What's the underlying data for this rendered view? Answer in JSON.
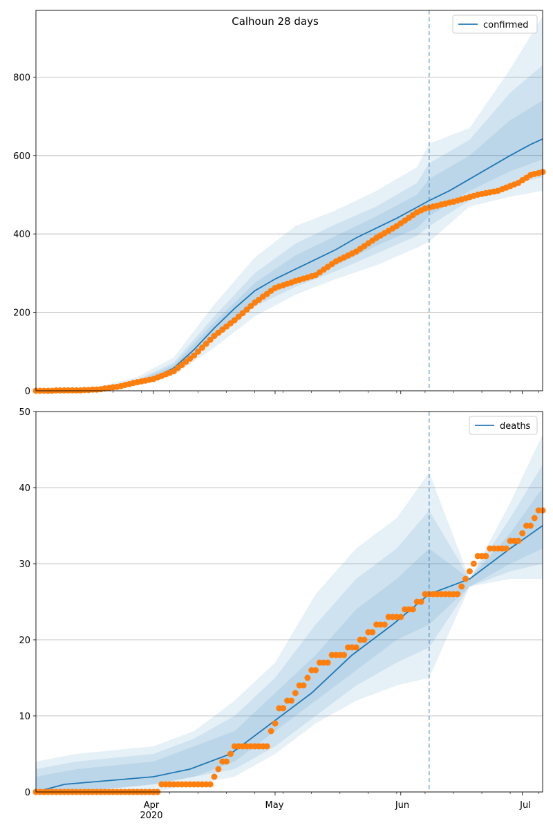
{
  "colors": {
    "model_line": "#1f77b4",
    "observed": "#ff7f0e",
    "band": "#1f77b4",
    "grid": "#b0b0b0",
    "forecast_line": "#1f77b4"
  },
  "x_tick_labels": {
    "apr": "Apr",
    "year": "2020",
    "may": "May",
    "jun": "Jun",
    "jul": "Jul"
  },
  "chart_data": [
    {
      "type": "line",
      "title": "Calhoun 28 days",
      "legend": [
        "confirmed"
      ],
      "legend_position": "top-right",
      "grid": "horizontal",
      "xlim": [
        "2020-03-03",
        "2020-07-06"
      ],
      "ylim": [
        0,
        970
      ],
      "y_ticks": [
        0,
        200,
        400,
        600,
        800
      ],
      "forecast_start": "2020-06-08",
      "observed": {
        "x": [
          "2020-03-03",
          "2020-03-13",
          "2020-03-18",
          "2020-03-23",
          "2020-03-28",
          "2020-04-01",
          "2020-04-06",
          "2020-04-11",
          "2020-04-16",
          "2020-04-21",
          "2020-04-26",
          "2020-05-01",
          "2020-05-06",
          "2020-05-11",
          "2020-05-16",
          "2020-05-21",
          "2020-05-26",
          "2020-05-31",
          "2020-06-05",
          "2020-06-07",
          "2020-06-10",
          "2020-06-15",
          "2020-06-20",
          "2020-06-25",
          "2020-06-30",
          "2020-07-03",
          "2020-07-06"
        ],
        "y": [
          0,
          1,
          3,
          10,
          22,
          30,
          50,
          90,
          140,
          180,
          225,
          262,
          280,
          295,
          330,
          355,
          390,
          420,
          455,
          465,
          472,
          485,
          500,
          510,
          530,
          550,
          558
        ]
      },
      "model": {
        "x": [
          "2020-03-03",
          "2020-03-13",
          "2020-03-18",
          "2020-03-23",
          "2020-03-28",
          "2020-04-01",
          "2020-04-06",
          "2020-04-11",
          "2020-04-16",
          "2020-04-21",
          "2020-04-26",
          "2020-05-01",
          "2020-05-06",
          "2020-05-11",
          "2020-05-16",
          "2020-05-21",
          "2020-05-26",
          "2020-05-31",
          "2020-06-05",
          "2020-06-08",
          "2020-06-13",
          "2020-06-18",
          "2020-06-23",
          "2020-06-28",
          "2020-07-03",
          "2020-07-06"
        ],
        "y": [
          0,
          2,
          5,
          12,
          22,
          33,
          58,
          105,
          160,
          210,
          255,
          285,
          310,
          335,
          360,
          390,
          415,
          440,
          468,
          485,
          510,
          540,
          570,
          600,
          628,
          642
        ]
      },
      "bands": {
        "x": [
          "2020-03-03",
          "2020-03-18",
          "2020-03-28",
          "2020-04-06",
          "2020-04-16",
          "2020-04-26",
          "2020-05-06",
          "2020-05-16",
          "2020-05-26",
          "2020-06-05",
          "2020-06-08",
          "2020-06-18",
          "2020-06-28",
          "2020-07-06"
        ],
        "outer_low": [
          0,
          3,
          15,
          40,
          110,
          190,
          245,
          285,
          320,
          365,
          380,
          470,
          495,
          510
        ],
        "outer_high": [
          0,
          9,
          35,
          85,
          220,
          340,
          420,
          460,
          510,
          570,
          630,
          670,
          820,
          955
        ],
        "inner_low": [
          0,
          4,
          18,
          48,
          130,
          215,
          265,
          305,
          350,
          395,
          420,
          485,
          525,
          545
        ],
        "inner_high": [
          0,
          7,
          28,
          72,
          190,
          300,
          375,
          425,
          470,
          530,
          580,
          640,
          760,
          830
        ],
        "core_low": [
          0,
          5,
          20,
          52,
          140,
          230,
          280,
          320,
          370,
          415,
          445,
          510,
          560,
          590
        ],
        "core_high": [
          0,
          6,
          25,
          66,
          175,
          275,
          345,
          395,
          445,
          500,
          540,
          600,
          690,
          740
        ]
      }
    },
    {
      "type": "line",
      "legend": [
        "deaths"
      ],
      "legend_position": "top-right",
      "grid": "horizontal",
      "xlim": [
        "2020-03-03",
        "2020-07-06"
      ],
      "ylim": [
        0,
        50
      ],
      "y_ticks": [
        0,
        10,
        20,
        30,
        40,
        50
      ],
      "forecast_start": "2020-06-08",
      "observed": {
        "x": [
          "2020-03-03",
          "2020-04-01",
          "2020-04-05",
          "2020-04-15",
          "2020-04-17",
          "2020-04-19",
          "2020-04-21",
          "2020-04-29",
          "2020-05-02",
          "2020-05-05",
          "2020-05-10",
          "2020-05-16",
          "2020-05-21",
          "2020-05-26",
          "2020-05-31",
          "2020-06-04",
          "2020-06-07",
          "2020-06-11",
          "2020-06-15",
          "2020-06-20",
          "2020-06-25",
          "2020-06-30",
          "2020-07-04",
          "2020-07-06"
        ],
        "y": [
          0,
          0,
          1,
          1,
          3,
          4,
          6,
          6,
          11,
          12,
          16,
          18,
          19,
          22,
          23,
          24,
          26,
          26,
          26,
          31,
          32,
          33,
          36,
          37
        ]
      },
      "model": {
        "x": [
          "2020-03-03",
          "2020-03-10",
          "2020-04-01",
          "2020-04-10",
          "2020-04-20",
          "2020-04-30",
          "2020-05-10",
          "2020-05-20",
          "2020-05-30",
          "2020-06-08",
          "2020-06-18",
          "2020-06-28",
          "2020-07-06"
        ],
        "y": [
          0,
          1,
          2,
          3,
          5,
          9,
          13,
          18,
          22,
          26,
          28,
          32,
          35
        ]
      },
      "bands": {
        "x": [
          "2020-03-03",
          "2020-03-13",
          "2020-04-01",
          "2020-04-11",
          "2020-04-21",
          "2020-05-01",
          "2020-05-11",
          "2020-05-21",
          "2020-05-31",
          "2020-06-08",
          "2020-06-18",
          "2020-06-28",
          "2020-07-06"
        ],
        "outer_low": [
          0,
          0,
          0,
          1,
          2,
          5,
          9,
          12,
          14,
          15,
          27,
          28,
          28
        ],
        "outer_high": [
          4,
          5,
          6,
          8,
          12,
          17,
          26,
          32,
          36,
          42,
          28,
          38,
          47
        ],
        "inner_low": [
          0,
          0,
          1,
          2,
          3,
          6,
          10,
          14,
          17,
          19,
          27,
          29,
          30
        ],
        "inner_high": [
          3,
          4,
          5,
          7,
          10,
          15,
          22,
          28,
          32,
          37,
          28,
          36,
          43
        ],
        "core_low": [
          0,
          0,
          1,
          2,
          4,
          8,
          12,
          16,
          20,
          22,
          27,
          30,
          32
        ],
        "core_high": [
          2,
          3,
          4,
          6,
          8,
          13,
          18,
          24,
          28,
          32,
          28,
          34,
          40
        ]
      }
    }
  ]
}
